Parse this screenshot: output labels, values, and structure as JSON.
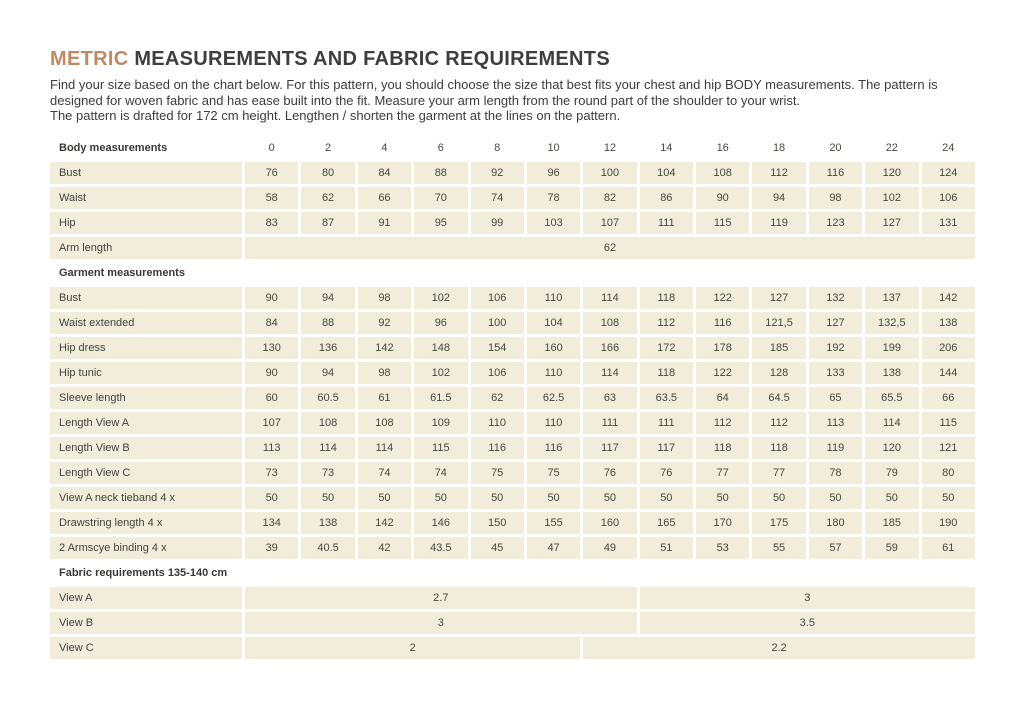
{
  "page": {
    "title_accent": "METRIC",
    "title_rest": " MEASUREMENTS AND FABRIC REQUIREMENTS",
    "intro_p1": "Find your size based on the chart below. For this pattern, you should choose the size that best fits your chest and hip BODY measurements. The pattern is designed for woven fabric and has ease built into the fit. Measure your arm length from the round part of the shoulder to your wrist.",
    "intro_p2": "The pattern is drafted for 172 cm height. Lengthen / shorten the garment at the lines on the pattern."
  },
  "colors": {
    "accent_text": "#bf8a63",
    "cell_background": "#f2ecdb",
    "heading_text": "#3d3d3b"
  },
  "table": {
    "sizes_label": "Body measurements",
    "sizes": [
      "0",
      "2",
      "4",
      "6",
      "8",
      "10",
      "12",
      "14",
      "16",
      "18",
      "20",
      "22",
      "24"
    ],
    "body_rows": [
      {
        "label": "Bust",
        "values": [
          "76",
          "80",
          "84",
          "88",
          "92",
          "96",
          "100",
          "104",
          "108",
          "112",
          "116",
          "120",
          "124"
        ]
      },
      {
        "label": "Waist",
        "values": [
          "58",
          "62",
          "66",
          "70",
          "74",
          "78",
          "82",
          "86",
          "90",
          "94",
          "98",
          "102",
          "106"
        ]
      },
      {
        "label": "Hip",
        "values": [
          "83",
          "87",
          "91",
          "95",
          "99",
          "103",
          "107",
          "111",
          "115",
          "119",
          "123",
          "127",
          "131"
        ]
      }
    ],
    "arm_length": {
      "label": "Arm length",
      "value": "62"
    },
    "garment_header": "Garment measurements",
    "garment_rows": [
      {
        "label": "Bust",
        "values": [
          "90",
          "94",
          "98",
          "102",
          "106",
          "110",
          "114",
          "118",
          "122",
          "127",
          "132",
          "137",
          "142"
        ]
      },
      {
        "label": "Waist extended",
        "values": [
          "84",
          "88",
          "92",
          "96",
          "100",
          "104",
          "108",
          "112",
          "116",
          "121,5",
          "127",
          "132,5",
          "138"
        ]
      },
      {
        "label": "Hip dress",
        "values": [
          "130",
          "136",
          "142",
          "148",
          "154",
          "160",
          "166",
          "172",
          "178",
          "185",
          "192",
          "199",
          "206"
        ]
      },
      {
        "label": "Hip tunic",
        "values": [
          "90",
          "94",
          "98",
          "102",
          "106",
          "110",
          "114",
          "118",
          "122",
          "128",
          "133",
          "138",
          "144"
        ]
      },
      {
        "label": "Sleeve length",
        "values": [
          "60",
          "60.5",
          "61",
          "61.5",
          "62",
          "62.5",
          "63",
          "63.5",
          "64",
          "64.5",
          "65",
          "65.5",
          "66"
        ]
      },
      {
        "label": "Length View A",
        "values": [
          "107",
          "108",
          "108",
          "109",
          "110",
          "110",
          "111",
          "111",
          "112",
          "112",
          "113",
          "114",
          "115"
        ]
      },
      {
        "label": "Length View B",
        "values": [
          "113",
          "114",
          "114",
          "115",
          "116",
          "116",
          "117",
          "117",
          "118",
          "118",
          "119",
          "120",
          "121"
        ]
      },
      {
        "label": "Length View C",
        "values": [
          "73",
          "73",
          "74",
          "74",
          "75",
          "75",
          "76",
          "76",
          "77",
          "77",
          "78",
          "79",
          "80"
        ]
      },
      {
        "label": "View A neck tieband 4  x",
        "values": [
          "50",
          "50",
          "50",
          "50",
          "50",
          "50",
          "50",
          "50",
          "50",
          "50",
          "50",
          "50",
          "50"
        ]
      },
      {
        "label": "Drawstring length 4  x",
        "values": [
          "134",
          "138",
          "142",
          "146",
          "150",
          "155",
          "160",
          "165",
          "170",
          "175",
          "180",
          "185",
          "190"
        ]
      },
      {
        "label": "2 Armscye binding  4  x",
        "values": [
          "39",
          "40.5",
          "42",
          "43.5",
          "45",
          "47",
          "49",
          "51",
          "53",
          "55",
          "57",
          "59",
          "61"
        ]
      }
    ],
    "fabric_header": "Fabric requirements 135-140 cm",
    "fabric_rows": [
      {
        "label": "View A",
        "spans": [
          {
            "value": "2.7",
            "cols": 7
          },
          {
            "value": "3",
            "cols": 6
          }
        ]
      },
      {
        "label": "View B",
        "spans": [
          {
            "value": "3",
            "cols": 7
          },
          {
            "value": "3.5",
            "cols": 6
          }
        ]
      },
      {
        "label": "View C",
        "spans": [
          {
            "value": "2",
            "cols": 6
          },
          {
            "value": "2.2",
            "cols": 7
          }
        ]
      }
    ]
  }
}
